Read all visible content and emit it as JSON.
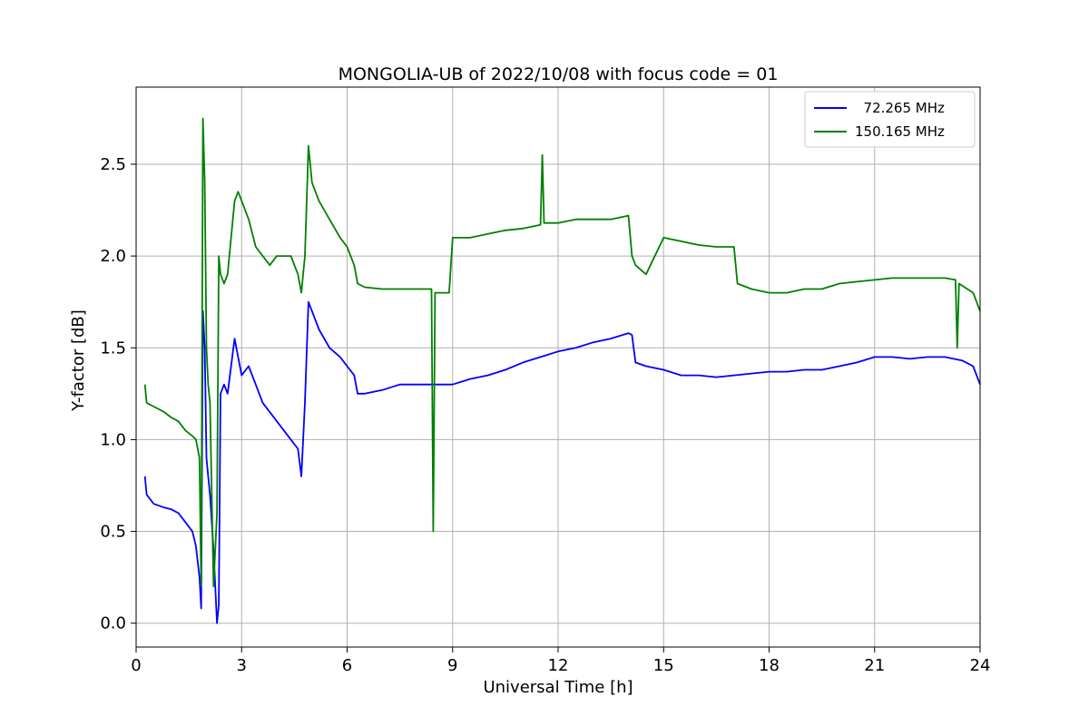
{
  "chart_data": {
    "type": "line",
    "title": "MONGOLIA-UB of 2022/10/08 with focus code = 01",
    "xlabel": "Universal Time [h]",
    "ylabel": "Y-factor [dB]",
    "xlim": [
      0,
      24
    ],
    "ylim": [
      -0.13,
      2.92
    ],
    "xticks": [
      0,
      3,
      6,
      9,
      12,
      15,
      18,
      21,
      24
    ],
    "xtick_labels": [
      "0",
      "3",
      "6",
      "9",
      "12",
      "15",
      "18",
      "21",
      "24"
    ],
    "yticks": [
      0.0,
      0.5,
      1.0,
      1.5,
      2.0,
      2.5
    ],
    "ytick_labels": [
      "0.0",
      "0.5",
      "1.0",
      "1.5",
      "2.0",
      "2.5"
    ],
    "grid": true,
    "legend_position": "top-right",
    "series": [
      {
        "name": "  72.265 MHz",
        "color": "#0000ff",
        "x": [
          0.25,
          0.3,
          0.5,
          0.8,
          1.0,
          1.2,
          1.4,
          1.6,
          1.7,
          1.8,
          1.85,
          1.9,
          1.95,
          2.0,
          2.05,
          2.1,
          2.2,
          2.3,
          2.35,
          2.4,
          2.5,
          2.6,
          2.8,
          2.9,
          3.0,
          3.2,
          3.4,
          3.6,
          3.8,
          4.0,
          4.2,
          4.4,
          4.6,
          4.7,
          4.8,
          4.9,
          5.0,
          5.2,
          5.5,
          5.8,
          6.0,
          6.2,
          6.3,
          6.5,
          7.0,
          7.5,
          8.0,
          8.5,
          9.0,
          9.5,
          10.0,
          10.5,
          11.0,
          11.5,
          12.0,
          12.5,
          13.0,
          13.5,
          14.0,
          14.1,
          14.2,
          14.5,
          15.0,
          15.5,
          16.0,
          16.5,
          17.0,
          17.5,
          18.0,
          18.5,
          19.0,
          19.5,
          20.0,
          20.5,
          21.0,
          21.5,
          22.0,
          22.5,
          23.0,
          23.5,
          23.8,
          24.0
        ],
        "y": [
          0.8,
          0.7,
          0.65,
          0.63,
          0.62,
          0.6,
          0.55,
          0.5,
          0.42,
          0.25,
          0.08,
          1.7,
          1.5,
          0.9,
          0.8,
          0.7,
          0.4,
          0.0,
          0.1,
          1.25,
          1.3,
          1.25,
          1.55,
          1.45,
          1.35,
          1.4,
          1.3,
          1.2,
          1.15,
          1.1,
          1.05,
          1.0,
          0.95,
          0.8,
          1.2,
          1.75,
          1.7,
          1.6,
          1.5,
          1.45,
          1.4,
          1.35,
          1.25,
          1.25,
          1.27,
          1.3,
          1.3,
          1.3,
          1.3,
          1.33,
          1.35,
          1.38,
          1.42,
          1.45,
          1.48,
          1.5,
          1.53,
          1.55,
          1.58,
          1.57,
          1.42,
          1.4,
          1.38,
          1.35,
          1.35,
          1.34,
          1.35,
          1.36,
          1.37,
          1.37,
          1.38,
          1.38,
          1.4,
          1.42,
          1.45,
          1.45,
          1.44,
          1.45,
          1.45,
          1.43,
          1.4,
          1.3
        ]
      },
      {
        "name": "150.165 MHz",
        "color": "#008000",
        "x": [
          0.25,
          0.3,
          0.5,
          0.8,
          1.0,
          1.2,
          1.4,
          1.6,
          1.7,
          1.8,
          1.85,
          1.9,
          1.95,
          2.0,
          2.05,
          2.1,
          2.2,
          2.3,
          2.35,
          2.4,
          2.5,
          2.6,
          2.8,
          2.9,
          3.0,
          3.2,
          3.4,
          3.6,
          3.8,
          4.0,
          4.2,
          4.4,
          4.6,
          4.7,
          4.8,
          4.9,
          5.0,
          5.2,
          5.5,
          5.8,
          6.0,
          6.2,
          6.3,
          6.5,
          7.0,
          7.5,
          8.0,
          8.4,
          8.45,
          8.5,
          8.9,
          9.0,
          9.5,
          10.0,
          10.5,
          11.0,
          11.5,
          11.55,
          11.6,
          12.0,
          12.5,
          13.0,
          13.5,
          14.0,
          14.1,
          14.2,
          14.5,
          15.0,
          15.5,
          16.0,
          16.5,
          17.0,
          17.1,
          17.5,
          18.0,
          18.5,
          19.0,
          19.5,
          20.0,
          20.5,
          21.0,
          21.5,
          22.0,
          22.5,
          23.0,
          23.3,
          23.35,
          23.4,
          23.8,
          24.0
        ],
        "y": [
          1.3,
          1.2,
          1.18,
          1.15,
          1.12,
          1.1,
          1.05,
          1.02,
          1.0,
          0.9,
          0.2,
          2.75,
          2.4,
          1.5,
          1.3,
          1.2,
          0.2,
          0.6,
          2.0,
          1.9,
          1.85,
          1.9,
          2.3,
          2.35,
          2.3,
          2.2,
          2.05,
          2.0,
          1.95,
          2.0,
          2.0,
          2.0,
          1.9,
          1.8,
          2.0,
          2.6,
          2.4,
          2.3,
          2.2,
          2.1,
          2.05,
          1.95,
          1.85,
          1.83,
          1.82,
          1.82,
          1.82,
          1.82,
          0.5,
          1.8,
          1.8,
          2.1,
          2.1,
          2.12,
          2.14,
          2.15,
          2.17,
          2.55,
          2.18,
          2.18,
          2.2,
          2.2,
          2.2,
          2.22,
          2.0,
          1.95,
          1.9,
          2.1,
          2.08,
          2.06,
          2.05,
          2.05,
          1.85,
          1.82,
          1.8,
          1.8,
          1.82,
          1.82,
          1.85,
          1.86,
          1.87,
          1.88,
          1.88,
          1.88,
          1.88,
          1.87,
          1.5,
          1.85,
          1.8,
          1.7
        ]
      }
    ]
  }
}
